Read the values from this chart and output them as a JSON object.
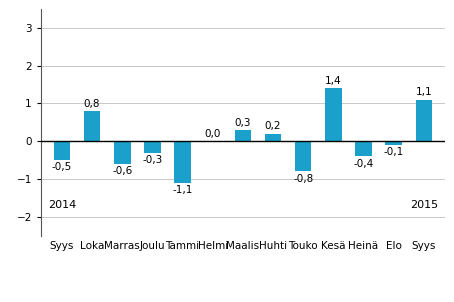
{
  "categories": [
    "Syys",
    "Loka",
    "Marras",
    "Joulu",
    "Tammi",
    "Helmi",
    "Maalis",
    "Huhti",
    "Touko",
    "Kesä",
    "Heinä",
    "Elo",
    "Syys"
  ],
  "values": [
    -0.5,
    0.8,
    -0.6,
    -0.3,
    -1.1,
    0.0,
    0.3,
    0.2,
    -0.8,
    1.4,
    -0.4,
    -0.1,
    1.1
  ],
  "bar_color": "#1ba0cb",
  "ylim": [
    -2.5,
    3.5
  ],
  "yticks": [
    -2,
    -1,
    0,
    1,
    2,
    3
  ],
  "tick_fontsize": 7.5,
  "year_fontsize": 8,
  "bar_label_fontsize": 7.5,
  "background_color": "#ffffff",
  "grid_color": "#c8c8c8",
  "year_left": "2014",
  "year_right": "2015",
  "bar_width": 0.55
}
